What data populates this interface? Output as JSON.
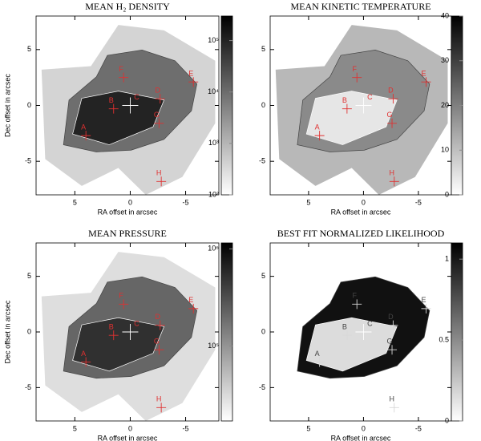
{
  "chart_data": [
    {
      "type": "map",
      "title": "MEAN H₂ DENSITY",
      "xlabel": "RA offset in arcsec",
      "ylabel": "Dec offset in arcsec",
      "xlim": [
        8.5,
        -8
      ],
      "ylim": [
        -8,
        8
      ],
      "xticks": [
        5,
        0,
        -5
      ],
      "yticks": [
        -5,
        0,
        5
      ],
      "colorbar": {
        "log": true,
        "lim": [
          100,
          300000
        ],
        "ticks": [
          {
            "value": 100,
            "label": "10²"
          },
          {
            "value": 1000,
            "label": "10³"
          },
          {
            "value": 10000,
            "label": "10⁴"
          },
          {
            "value": 100000,
            "label": "10⁵"
          }
        ]
      },
      "marker_color": "#e03030"
    },
    {
      "type": "map",
      "title": "MEAN KINETIC TEMPERATURE",
      "xlabel": "RA offset in arcsec",
      "xlim": [
        8.5,
        -8
      ],
      "ylim": [
        -8,
        8
      ],
      "xticks": [
        5,
        0,
        -5
      ],
      "yticks": [
        -5,
        0,
        5
      ],
      "colorbar": {
        "log": false,
        "lim": [
          0,
          40
        ],
        "ticks": [
          0,
          10,
          20,
          30,
          40
        ]
      },
      "marker_color": "#e03030"
    },
    {
      "type": "map",
      "title": "MEAN PRESSURE",
      "xlabel": "RA offset in arcsec",
      "ylabel": "Dec offset in arcsec",
      "xlim": [
        8.5,
        -8
      ],
      "ylim": [
        -8,
        8
      ],
      "xticks": [
        5,
        0,
        -5
      ],
      "yticks": [
        -5,
        0,
        5
      ],
      "colorbar": {
        "log": true,
        "lim": [
          17000,
          1150000
        ],
        "ticks": [
          {
            "value": 100000,
            "label": "10⁵"
          },
          {
            "value": 1000000,
            "label": "10⁶"
          }
        ]
      },
      "marker_color": "#e03030"
    },
    {
      "type": "map",
      "title": "BEST FIT NORMALIZED LIKELIHOOD",
      "xlabel": "RA offset in arcsec",
      "xlim": [
        8.5,
        -8
      ],
      "ylim": [
        -8,
        8
      ],
      "xticks": [
        5,
        0,
        -5
      ],
      "yticks": [
        -5,
        0,
        5
      ],
      "colorbar": {
        "log": false,
        "lim": [
          0,
          1.1
        ],
        "ticks": [
          0,
          0.5,
          1
        ]
      },
      "marker_color": "#d8d8d8"
    }
  ],
  "sources": [
    {
      "label": "A",
      "ra": 4,
      "dec": -2.7
    },
    {
      "label": "B",
      "ra": 1.5,
      "dec": -0.3
    },
    {
      "label": "C",
      "ra": 0,
      "dec": 0
    },
    {
      "label": "D",
      "ra": -2.7,
      "dec": 0.6
    },
    {
      "label": "E",
      "ra": -5.7,
      "dec": 2.1
    },
    {
      "label": "F",
      "ra": 0.6,
      "dec": 2.5
    },
    {
      "label": "G",
      "ra": -2.6,
      "dec": -1.6
    },
    {
      "label": "H",
      "ra": -2.8,
      "dec": -6.8
    }
  ]
}
